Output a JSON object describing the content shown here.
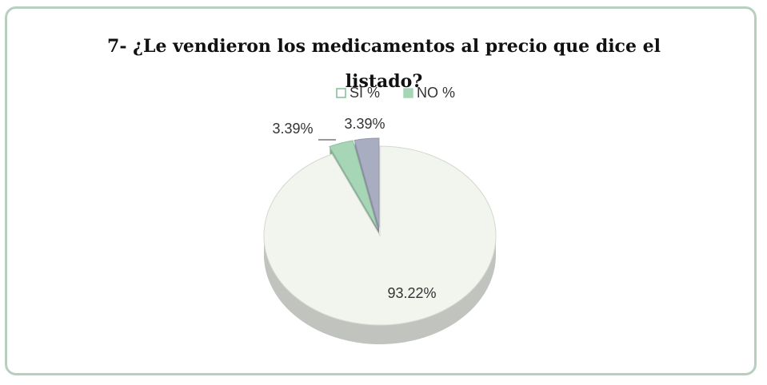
{
  "chart_data": {
    "type": "pie",
    "title": "7- ¿Le vendieron los medicamentos al precio que dice el listado?",
    "categories": [
      "SI %",
      "NO %",
      null
    ],
    "values": [
      93.22,
      3.39,
      3.39
    ],
    "value_labels": [
      "93.22%",
      "3.39%",
      "3.39%"
    ],
    "colors": [
      "#f1f5ee",
      "#a6d6b6",
      "#a9adc2"
    ],
    "legend": "top"
  }
}
